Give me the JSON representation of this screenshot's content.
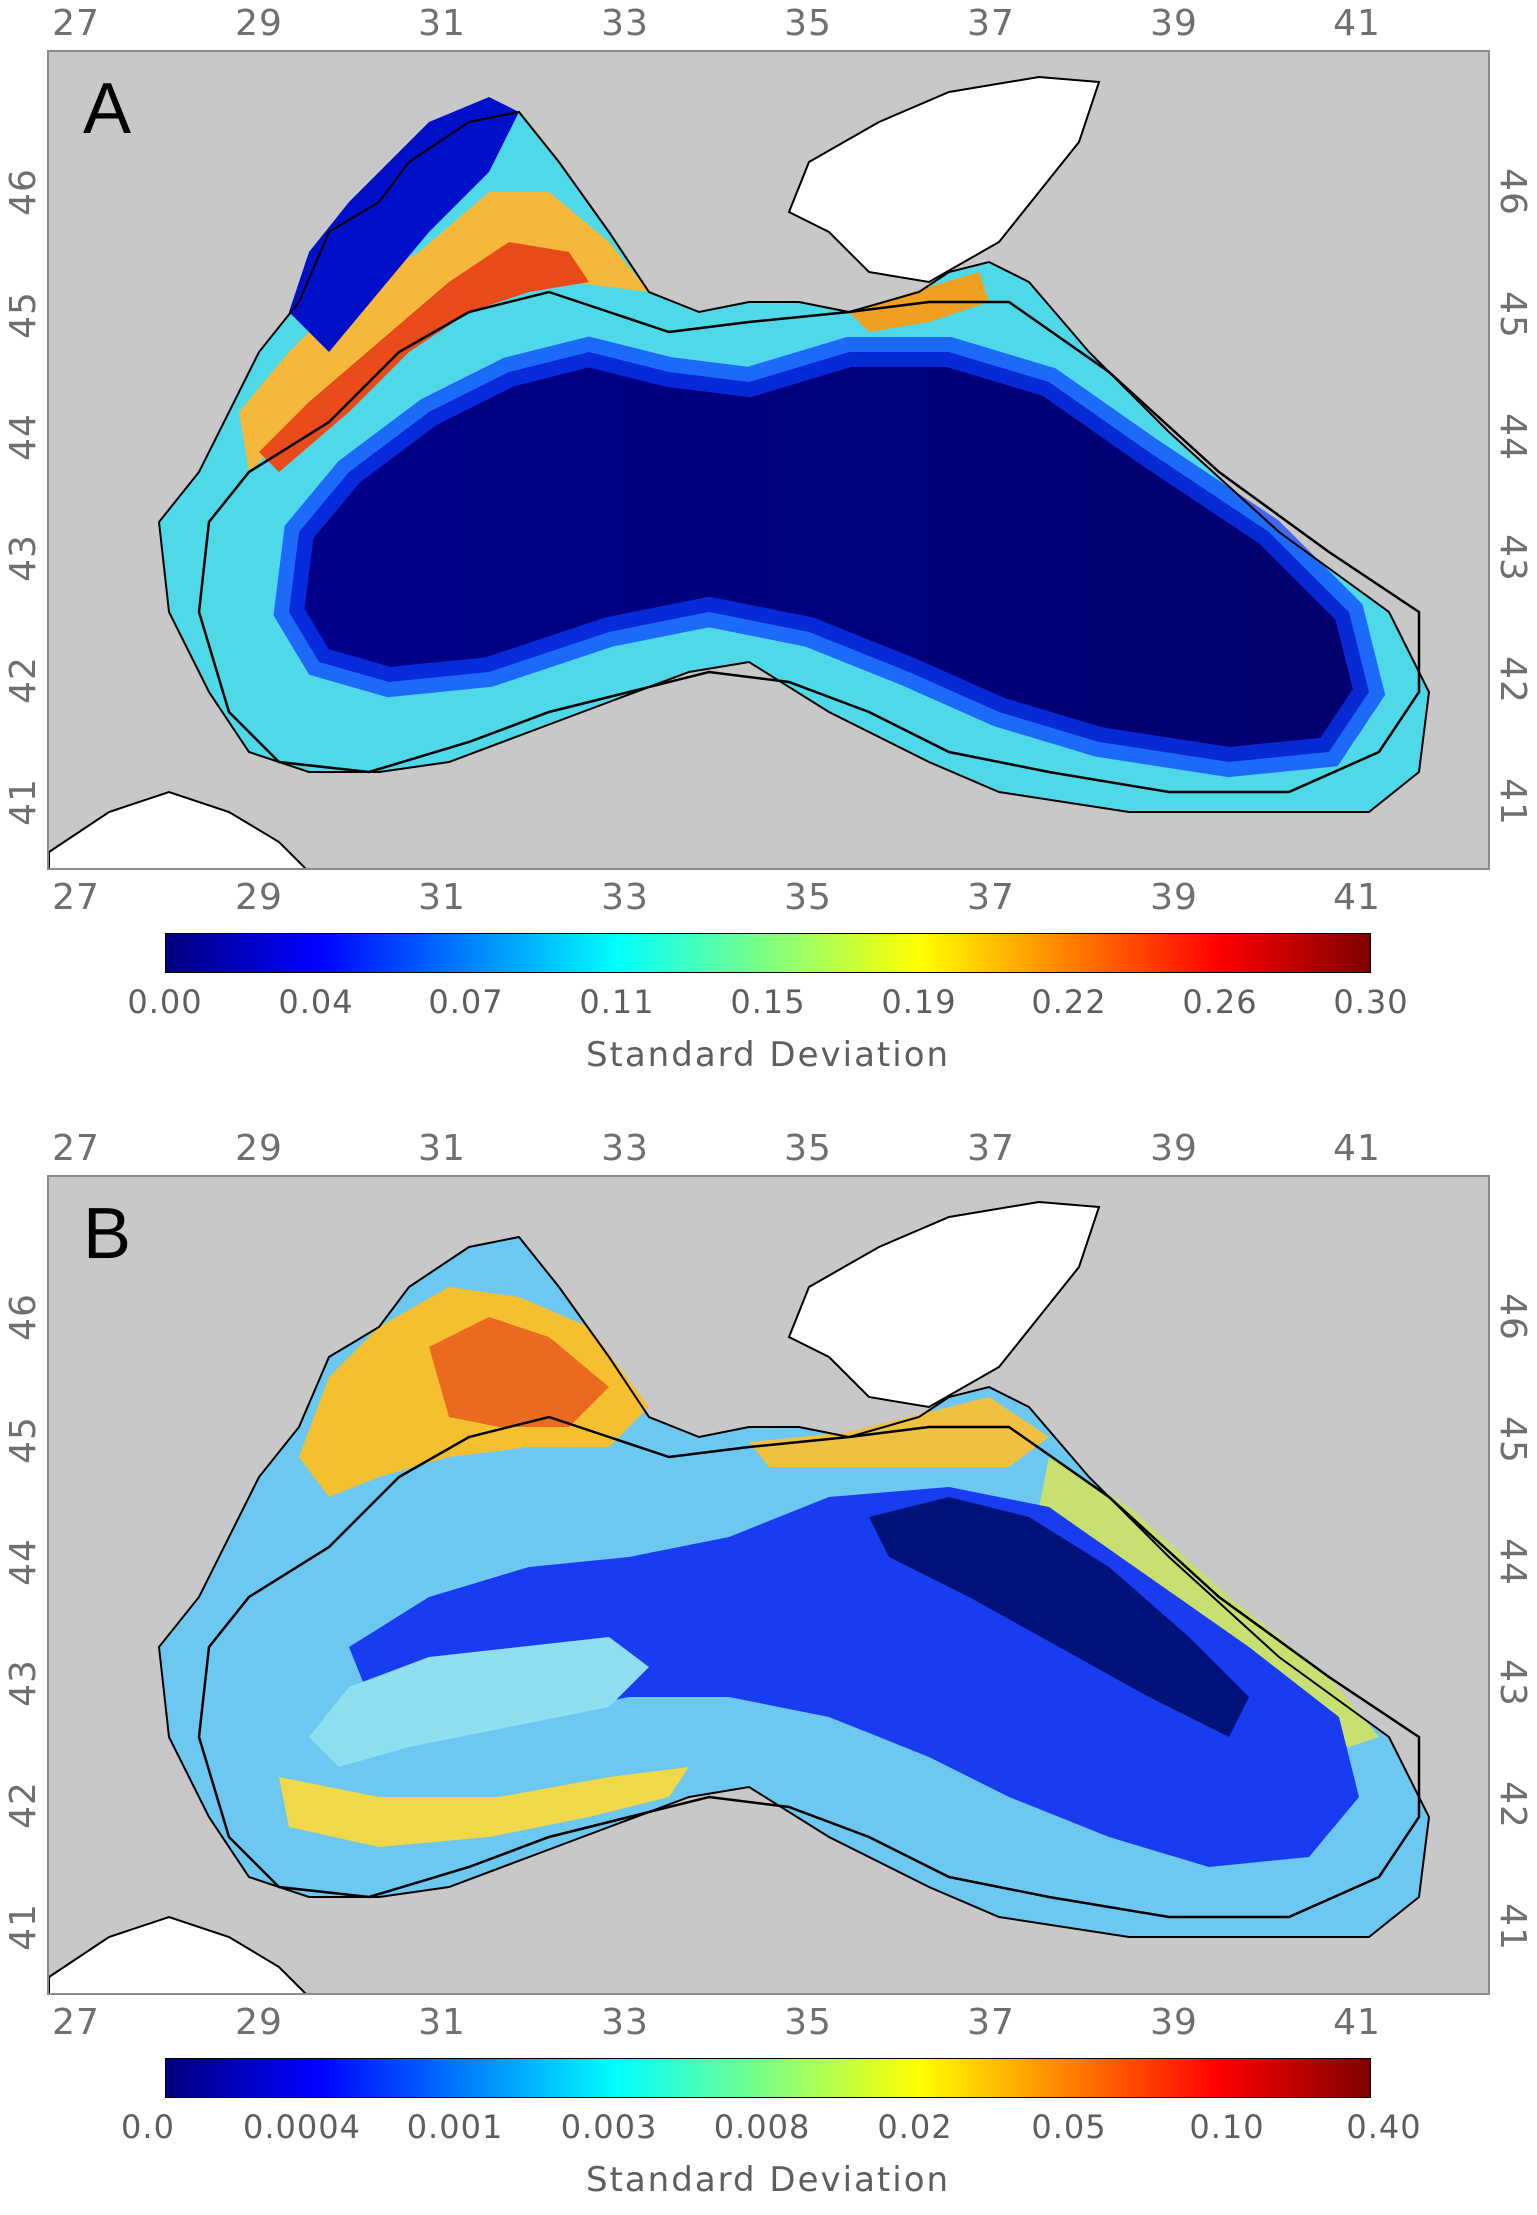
{
  "panels": [
    {
      "letter": "A",
      "lon_ticks": [
        "27",
        "29",
        "31",
        "33",
        "35",
        "37",
        "39",
        "41"
      ],
      "lat_ticks": [
        "46",
        "45",
        "44",
        "43",
        "42",
        "41"
      ],
      "colorbar_ticks": [
        "0.00",
        "0.04",
        "0.07",
        "0.11",
        "0.15",
        "0.19",
        "0.22",
        "0.26",
        "0.30"
      ],
      "colorbar_label": "Standard Deviation"
    },
    {
      "letter": "B",
      "lon_ticks": [
        "27",
        "29",
        "31",
        "33",
        "35",
        "37",
        "39",
        "41"
      ],
      "lat_ticks": [
        "46",
        "45",
        "44",
        "43",
        "42",
        "41"
      ],
      "colorbar_ticks": [
        "0.0",
        "0.0004",
        "0.001",
        "0.003",
        "0.008",
        "0.02",
        "0.05",
        "0.10",
        "0.40"
      ],
      "colorbar_label": "Standard Deviation"
    }
  ],
  "colors": {
    "land": "#c8c8c8",
    "sea_of_azov": "#ffffff",
    "coastline": "#000000",
    "colormap": [
      "#00007f",
      "#0000ff",
      "#0080ff",
      "#00ffff",
      "#80ff80",
      "#ffff00",
      "#ff8000",
      "#ff0000",
      "#7f0000"
    ]
  }
}
